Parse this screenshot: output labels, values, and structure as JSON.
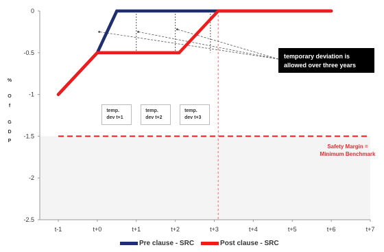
{
  "chart_data": {
    "type": "line",
    "categories": [
      "t-1",
      "t+0",
      "t+1",
      "t+2",
      "t+3",
      "t+4",
      "t+5",
      "t+6",
      "t+7"
    ],
    "series": [
      {
        "name": "Pre clause - SRC",
        "color": "#1f2e6e",
        "points": [
          [
            0,
            -1
          ],
          [
            1,
            -0.5
          ],
          [
            1.5,
            0
          ],
          [
            7,
            0
          ]
        ]
      },
      {
        "name": "Post clause - SRC",
        "color": "#ee1c1c",
        "points": [
          [
            0,
            -1
          ],
          [
            1,
            -0.5
          ],
          [
            3.1,
            -0.5
          ],
          [
            4.1,
            0
          ],
          [
            7,
            0
          ]
        ]
      }
    ],
    "ylabel": "% Of GDP",
    "ylabel_letters": [
      "%",
      "O",
      "f",
      "G",
      "D",
      "P"
    ],
    "yticks": [
      0,
      -0.5,
      -1,
      -1.5,
      -2,
      -2.5
    ],
    "ytick_labels": [
      "0",
      "-0.5",
      "-1",
      "-1.5",
      "-2",
      "-2.5"
    ],
    "ylim": [
      -2.5,
      0
    ],
    "safety_margin": {
      "value": -1.5,
      "label_lines": [
        "Safety Margin =",
        "Minimum Benchmark"
      ],
      "color": "#ee1c1c"
    },
    "vertical_marker": {
      "x": 4.1,
      "color": "#ee6666"
    },
    "annotations": {
      "callout_lines": [
        "temporary deviation is",
        "allowed over three years"
      ],
      "dev_boxes": [
        {
          "x": 1.5,
          "lines": [
            "temp.",
            "dev t+1"
          ]
        },
        {
          "x": 2.5,
          "lines": [
            "temp.",
            "dev t+2"
          ]
        },
        {
          "x": 3.5,
          "lines": [
            "temp.",
            "dev t+3"
          ]
        }
      ],
      "arrow_x": [
        2,
        3,
        3.9
      ]
    },
    "shaded_region": {
      "from": -1.5,
      "to": -2.5,
      "color": "#f4f4f4"
    },
    "grid": false,
    "legend_position": "bottom"
  }
}
